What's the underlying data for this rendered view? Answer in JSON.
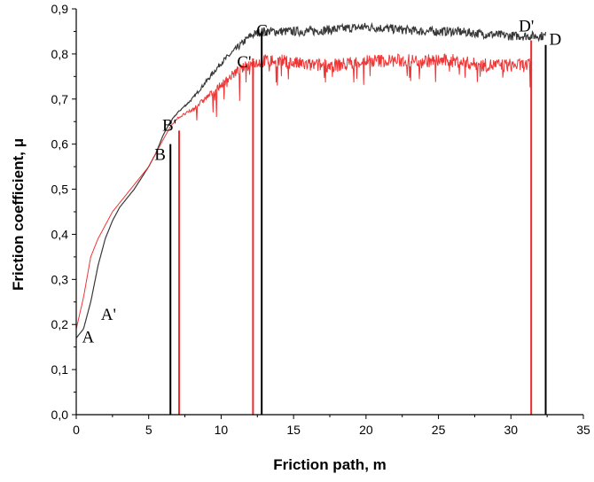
{
  "chart_data": {
    "type": "line",
    "title": "",
    "xlabel": "Friction path, m",
    "ylabel": "Friction coefficient, μ",
    "xlim": [
      0,
      35
    ],
    "ylim": [
      0,
      0.9
    ],
    "x_ticks": [
      0,
      5,
      10,
      15,
      20,
      25,
      30,
      35
    ],
    "y_ticks": [
      0.0,
      0.1,
      0.2,
      0.3,
      0.4,
      0.5,
      0.6,
      0.7,
      0.8,
      0.9
    ],
    "x_tick_labels": [
      "0",
      "5",
      "10",
      "15",
      "20",
      "25",
      "30",
      "35"
    ],
    "y_tick_labels": [
      "0,0",
      "0,1",
      "0,2",
      "0,3",
      "0,4",
      "0,5",
      "0,6",
      "0,7",
      "0,8",
      "0,9"
    ],
    "grid": false,
    "series": [
      {
        "color": "#222222",
        "x": [
          0,
          0.5,
          1,
          1.5,
          2,
          2.5,
          3,
          4,
          5,
          5.5,
          6,
          6.5,
          7,
          8,
          9,
          10,
          11,
          12,
          12.8,
          14,
          16,
          18,
          20,
          22,
          24,
          26,
          28,
          30,
          31,
          32.4
        ],
        "y": [
          0.17,
          0.19,
          0.25,
          0.33,
          0.39,
          0.43,
          0.46,
          0.5,
          0.55,
          0.58,
          0.62,
          0.65,
          0.67,
          0.7,
          0.74,
          0.78,
          0.81,
          0.84,
          0.85,
          0.85,
          0.85,
          0.855,
          0.86,
          0.855,
          0.85,
          0.85,
          0.845,
          0.84,
          0.84,
          0.84
        ],
        "noise": 0.02
      },
      {
        "color": "#ee2a2a",
        "x": [
          0,
          0.5,
          1,
          1.5,
          2,
          2.5,
          3,
          4,
          5,
          5.5,
          6,
          6.5,
          7,
          8,
          9,
          10,
          11,
          12,
          13,
          14,
          16,
          18,
          20,
          22,
          24,
          26,
          28,
          30,
          31.4
        ],
        "y": [
          0.19,
          0.26,
          0.35,
          0.39,
          0.42,
          0.45,
          0.47,
          0.51,
          0.55,
          0.58,
          0.61,
          0.64,
          0.66,
          0.68,
          0.71,
          0.74,
          0.77,
          0.79,
          0.8,
          0.8,
          0.79,
          0.79,
          0.8,
          0.8,
          0.8,
          0.8,
          0.79,
          0.79,
          0.79
        ],
        "noise": 0.05
      }
    ],
    "markers": [
      {
        "label": "A",
        "x": 0.4,
        "y": 0.16,
        "color": "#000000",
        "line_top": null
      },
      {
        "label": "A'",
        "x": 1.7,
        "y": 0.21,
        "color": "#000000",
        "line_top": null
      },
      {
        "label": "B",
        "x": 6.5,
        "y": 0.565,
        "color": "#000000",
        "line_top": 0.6
      },
      {
        "label": "B'",
        "x": 7.1,
        "y": 0.63,
        "color": "#ee2a2a",
        "line_top": 0.63
      },
      {
        "label": "C'",
        "x": 12.2,
        "y": 0.77,
        "color": "#ee2a2a",
        "line_top": 0.79
      },
      {
        "label": "C",
        "x": 12.8,
        "y": 0.84,
        "color": "#000000",
        "line_top": 0.85
      },
      {
        "label": "D'",
        "x": 31.4,
        "y": 0.85,
        "color": "#ee2a2a",
        "line_top": 0.83
      },
      {
        "label": "D",
        "x": 32.4,
        "y": 0.82,
        "color": "#000000",
        "line_top": 0.82
      }
    ]
  }
}
